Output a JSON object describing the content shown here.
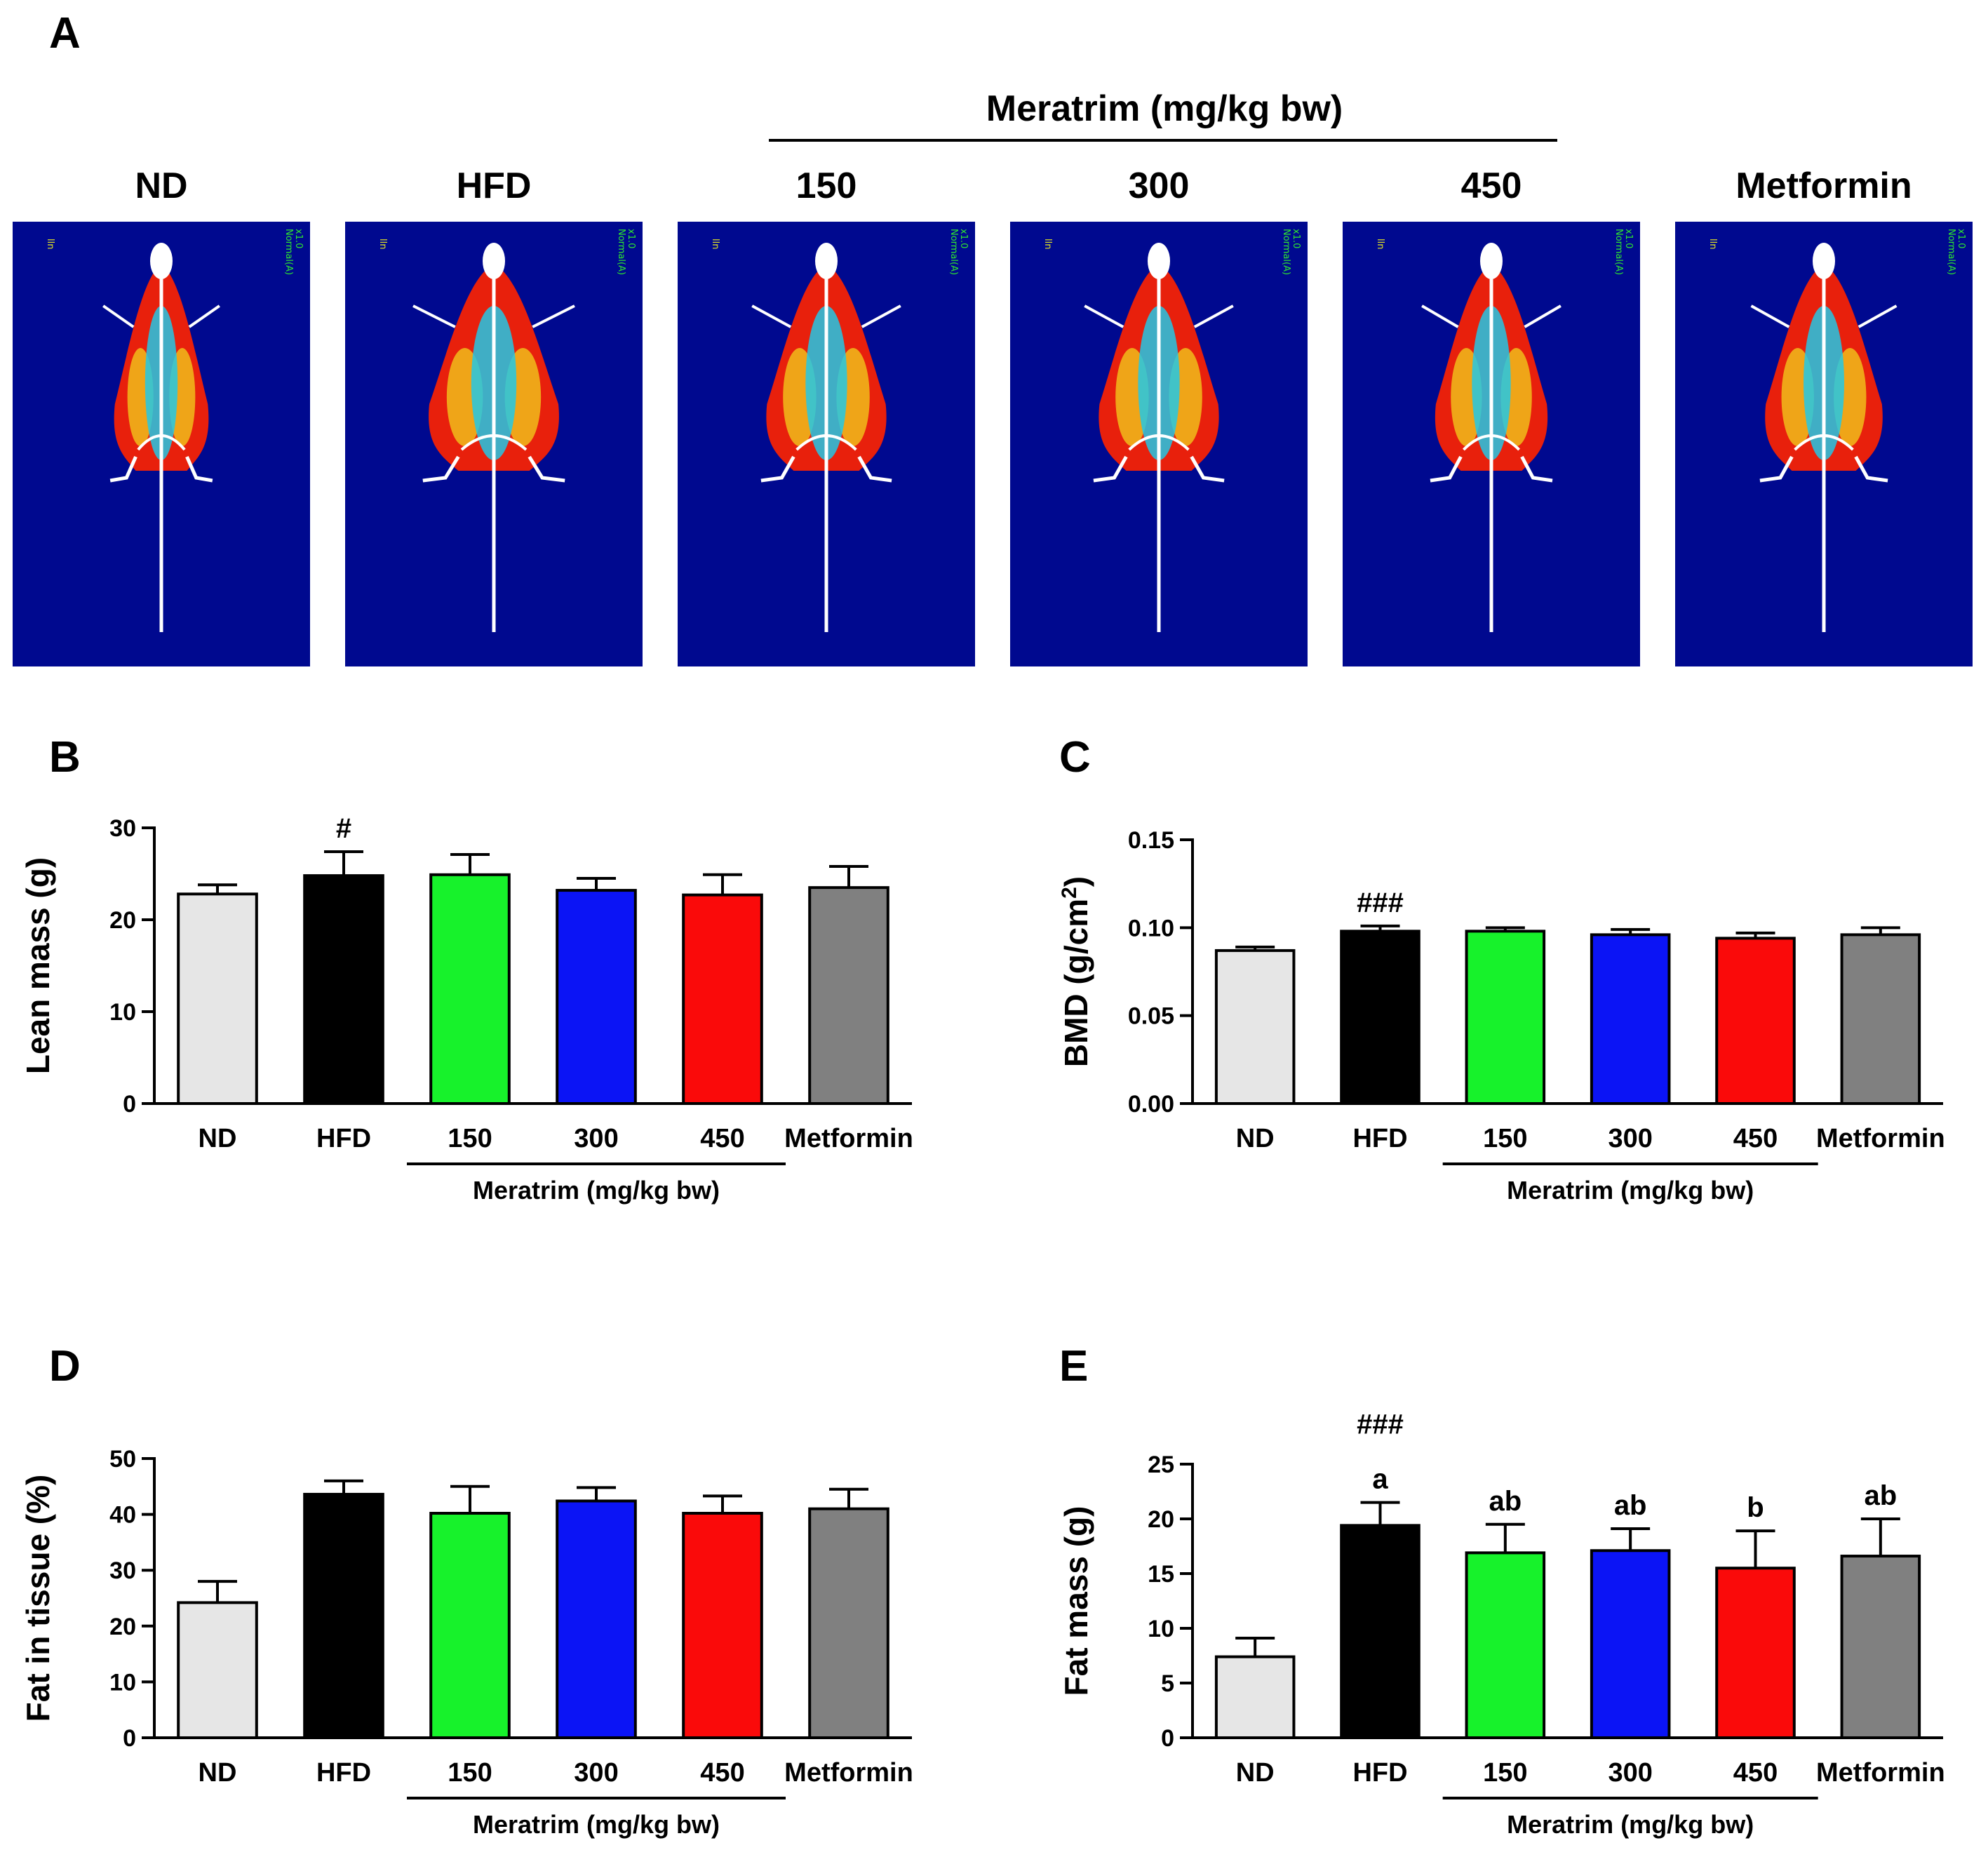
{
  "panel_a": {
    "letter": "A",
    "group_label": "Meratrim (mg/kg bw)",
    "columns": [
      "ND",
      "HFD",
      "150",
      "300",
      "450",
      "Metformin"
    ],
    "scan_labels": {
      "left": "lln",
      "right_top": "Normal(A)",
      "right_bottom": "x1.0"
    },
    "body_widths": [
      0.72,
      1.0,
      0.92,
      0.92,
      0.86,
      0.9
    ],
    "colors": {
      "background": "#00098f",
      "fat_red": "#e8200c",
      "lean_yellow": "#f2d11c",
      "lean_cyan": "#22c8e6",
      "bone": "#ffffff"
    }
  },
  "chart_data": [
    {
      "panel": "B",
      "type": "bar",
      "ylabel": "Lean mass (g)",
      "ylim": [
        0,
        30
      ],
      "yticks": [
        "0",
        "10",
        "20",
        "30"
      ],
      "ytick_values": [
        0,
        10,
        20,
        30
      ],
      "categories": [
        "ND",
        "HFD",
        "150",
        "300",
        "450",
        "Metformin"
      ],
      "values": [
        22.8,
        24.8,
        24.9,
        23.2,
        22.7,
        23.5
      ],
      "errors": [
        1.0,
        2.6,
        2.2,
        1.3,
        2.2,
        2.3
      ],
      "annotations": [
        "",
        "#",
        "",
        "",
        "",
        ""
      ],
      "group_label": "Meratrim (mg/kg bw)"
    },
    {
      "panel": "C",
      "type": "bar",
      "ylabel": "BMD (g/cm",
      "ylabel_sup": "2",
      "ylabel_end": ")",
      "ylim": [
        0,
        0.15
      ],
      "yticks": [
        "0.00",
        "0.05",
        "0.10",
        "0.15"
      ],
      "ytick_values": [
        0,
        0.05,
        0.1,
        0.15
      ],
      "categories": [
        "ND",
        "HFD",
        "150",
        "300",
        "450",
        "Metformin"
      ],
      "values": [
        0.087,
        0.098,
        0.098,
        0.096,
        0.094,
        0.096
      ],
      "errors": [
        0.002,
        0.003,
        0.002,
        0.003,
        0.003,
        0.004
      ],
      "annotations": [
        "",
        "###",
        "",
        "",
        "",
        ""
      ],
      "group_label": "Meratrim (mg/kg bw)"
    },
    {
      "panel": "D",
      "type": "bar",
      "ylabel": "Fat in tissue (%)",
      "ylim": [
        0,
        50
      ],
      "yticks": [
        "0",
        "10",
        "20",
        "30",
        "40",
        "50"
      ],
      "ytick_values": [
        0,
        10,
        20,
        30,
        40,
        50
      ],
      "categories": [
        "ND",
        "HFD",
        "150",
        "300",
        "450",
        "Metformin"
      ],
      "values": [
        24.2,
        43.6,
        40.2,
        42.4,
        40.2,
        41.0
      ],
      "errors": [
        3.8,
        2.4,
        4.8,
        2.4,
        3.1,
        3.5
      ],
      "annotations": [
        "",
        "",
        "",
        "",
        "",
        ""
      ],
      "group_label": "Meratrim (mg/kg bw)"
    },
    {
      "panel": "E",
      "type": "bar",
      "ylabel": "Fat mass (g)",
      "ylim": [
        0,
        25
      ],
      "yticks": [
        "0",
        "5",
        "10",
        "15",
        "20",
        "25"
      ],
      "ytick_values": [
        0,
        5,
        10,
        15,
        20,
        25
      ],
      "categories": [
        "ND",
        "HFD",
        "150",
        "300",
        "450",
        "Metformin"
      ],
      "values": [
        7.4,
        19.4,
        16.9,
        17.1,
        15.5,
        16.6
      ],
      "errors": [
        1.7,
        2.1,
        2.6,
        2.0,
        3.4,
        3.4
      ],
      "annotations": [
        "",
        "a",
        "ab",
        "ab",
        "b",
        "ab"
      ],
      "top_annotation": "###",
      "group_label": "Meratrim (mg/kg bw)"
    }
  ],
  "bar_colors": [
    "#e6e6e6",
    "#000000",
    "#17f22b",
    "#0b14f5",
    "#fa0a0a",
    "#808080"
  ]
}
